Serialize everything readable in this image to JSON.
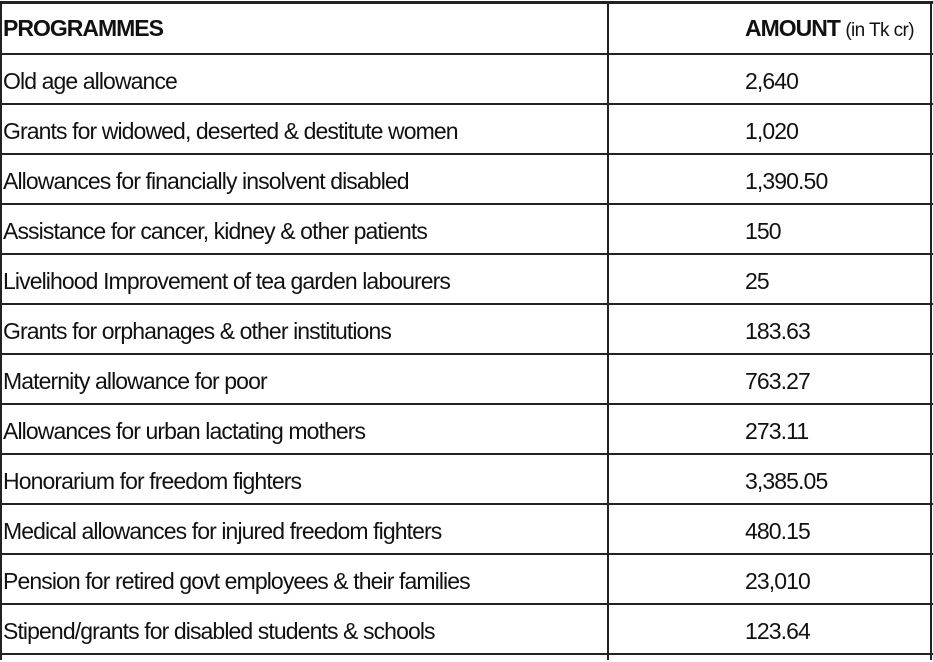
{
  "header": {
    "programmes": "PROGRAMMES",
    "amount": "AMOUNT",
    "unit": "(in Tk cr)"
  },
  "table": {
    "rows": [
      [
        "Old age allowance",
        "2,640"
      ],
      [
        "Grants for widowed, deserted & destitute women",
        "1,020"
      ],
      [
        "Allowances for financially insolvent disabled",
        "1,390.50"
      ],
      [
        "Assistance for cancer, kidney & other patients",
        "150"
      ],
      [
        "Livelihood Improvement of tea garden labourers",
        "25"
      ],
      [
        "Grants for orphanages & other institutions",
        "183.63"
      ],
      [
        "Maternity allowance for poor",
        "763.27"
      ],
      [
        "Allowances for urban lactating mothers",
        "273.11"
      ],
      [
        "Honorarium for freedom fighters",
        "3,385.05"
      ],
      [
        "Medical allowances for injured freedom fighters",
        "480.15"
      ],
      [
        "Pension for retired govt employees & their families",
        "23,010"
      ],
      [
        "Stipend/grants for disabled students & schools",
        "123.64"
      ]
    ]
  }
}
